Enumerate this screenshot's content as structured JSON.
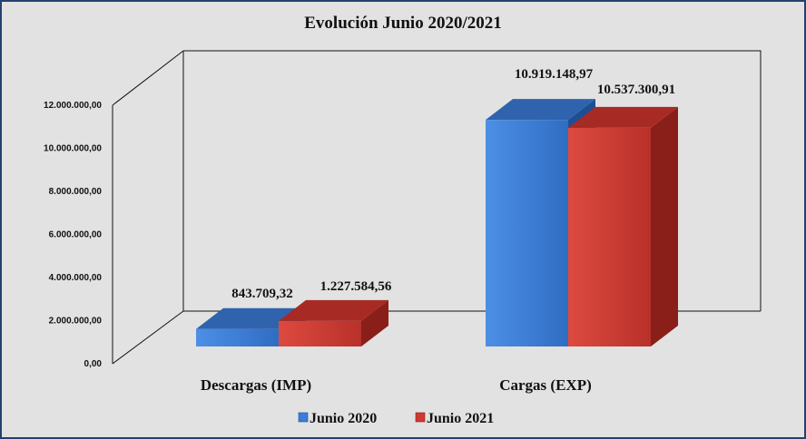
{
  "chart_data": {
    "type": "bar",
    "title": "Evolución Junio 2020/2021",
    "categories": [
      "Descargas (IMP)",
      "Cargas (EXP)"
    ],
    "series": [
      {
        "name": "Junio 2020",
        "values": [
          843709.32,
          10919148.97
        ],
        "labels": [
          "843.709,32",
          "10.919.148,97"
        ],
        "color": "#3b7dd8"
      },
      {
        "name": "Junio 2021",
        "values": [
          1227584.56,
          10537300.91
        ],
        "labels": [
          "1.227.584,56",
          "10.537.300,91"
        ],
        "color": "#d0392f"
      }
    ],
    "ylim": [
      0,
      12000000
    ],
    "yticks": [
      "0,00",
      "2.000.000,00",
      "4.000.000,00",
      "6.000.000,00",
      "8.000.000,00",
      "10.000.000,00",
      "12.000.000,00"
    ],
    "grid": false,
    "legend_position": "bottom",
    "style": "3d-clustered-column"
  }
}
